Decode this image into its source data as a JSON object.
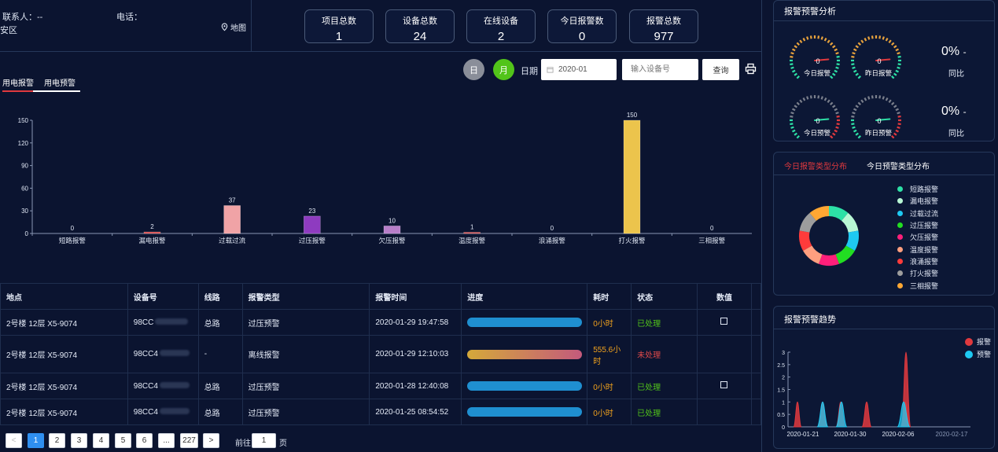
{
  "header": {
    "contact_label": "联系人：--",
    "phone_label": "电话：",
    "area_label": "安区",
    "map_label": "地图"
  },
  "stats": [
    {
      "title": "项目总数",
      "value": "1"
    },
    {
      "title": "设备总数",
      "value": "24"
    },
    {
      "title": "在线设备",
      "value": "2"
    },
    {
      "title": "今日报警数",
      "value": "0"
    },
    {
      "title": "报警总数",
      "value": "977"
    }
  ],
  "toolbar": {
    "day_label": "日",
    "month_label": "月",
    "date_label": "日期",
    "date_value": "2020-01",
    "device_placeholder": "输入设备号",
    "query_label": "查询"
  },
  "tabs": {
    "alarm": "用电报警",
    "warning": "用电预警"
  },
  "colors": {
    "bar_default": "#e04a4a",
    "bar_overload": "#f0a3a6",
    "bar_overvoltage": "#8e3bc0",
    "bar_undervoltage": "#b77ec8",
    "bar_fire": "#ecc44c",
    "accent_green": "#52c41a"
  },
  "chart_data": {
    "type": "bar",
    "categories": [
      "短路报警",
      "漏电报警",
      "过载过流",
      "过压报警",
      "欠压报警",
      "温度报警",
      "浪涌报警",
      "打火报警",
      "三相报警"
    ],
    "values": [
      0,
      2,
      37,
      23,
      10,
      1,
      0,
      150,
      0
    ],
    "yticks": [
      "0",
      "30",
      "60",
      "90",
      "120",
      "150"
    ],
    "ylim": [
      0,
      150
    ]
  },
  "table": {
    "columns": [
      "地点",
      "设备号",
      "线路",
      "报警类型",
      "报警时间",
      "进度",
      "耗时",
      "状态",
      "数值"
    ],
    "rows": [
      {
        "location": "2号楼 12层 X5-9074",
        "device": "98CC",
        "line": "总路",
        "type": "过压预警",
        "time": "2020-01-29 19:47:58",
        "duration": "0小时",
        "status": "已处理",
        "progress": "blue"
      },
      {
        "location": "2号楼 12层 X5-9074",
        "device": "98CC4",
        "line": "-",
        "type": "离线报警",
        "time": "2020-01-29 12:10:03",
        "duration": "555.6小时",
        "status": "未处理",
        "progress": "gradient"
      },
      {
        "location": "2号楼 12层 X5-9074",
        "device": "98CC4",
        "line": "总路",
        "type": "过压预警",
        "time": "2020-01-28 12:40:08",
        "duration": "0小时",
        "status": "已处理",
        "progress": "blue"
      },
      {
        "location": "2号楼 12层 X5-9074",
        "device": "98CC4",
        "line": "总路",
        "type": "过压预警",
        "time": "2020-01-25 08:54:52",
        "duration": "0小时",
        "status": "已处理",
        "progress": "blue"
      }
    ]
  },
  "pagination": {
    "prev": "<",
    "pages": [
      "1",
      "2",
      "3",
      "4",
      "5",
      "6",
      "...",
      "227"
    ],
    "next": ">",
    "goto_label": "前往",
    "goto_value": "1",
    "page_suffix": "页"
  },
  "analysis": {
    "title": "报警预警分析",
    "gauges": [
      {
        "value": "0",
        "label": "今日报警"
      },
      {
        "value": "0",
        "label": "昨日报警"
      },
      {
        "value": "0",
        "label": "今日预警"
      },
      {
        "value": "0",
        "label": "昨日预警"
      }
    ],
    "ratio1": "0%",
    "ratio2": "0%",
    "dash": "-",
    "compare_label": "同比"
  },
  "distribution": {
    "tab_alarm": "今日报警类型分布",
    "tab_warning": "今日预警类型分布",
    "legend": [
      {
        "name": "短路报警",
        "color": "#2de0a6"
      },
      {
        "name": "漏电报警",
        "color": "#b8f7d4"
      },
      {
        "name": "过载过流",
        "color": "#1ec9f2"
      },
      {
        "name": "过压报警",
        "color": "#22dd22"
      },
      {
        "name": "欠压报警",
        "color": "#ff1f7a"
      },
      {
        "name": "温度报警",
        "color": "#ff9f7f"
      },
      {
        "name": "浪涌报警",
        "color": "#ff3b3b"
      },
      {
        "name": "打火报警",
        "color": "#9d9d9d"
      },
      {
        "name": "三相报警",
        "color": "#ffa733"
      }
    ]
  },
  "trend": {
    "title": "报警预警趋势",
    "legend_alarm": "报警",
    "legend_warning": "预警",
    "yticks": [
      "0",
      "0.5",
      "1",
      "1.5",
      "2",
      "2.5",
      "3"
    ],
    "xticks": [
      "2020-01-21",
      "2020-01-30",
      "2020-02-06",
      "2020-02-17"
    ],
    "alarm_color": "#e0393e",
    "warning_color": "#1ec9f2"
  }
}
